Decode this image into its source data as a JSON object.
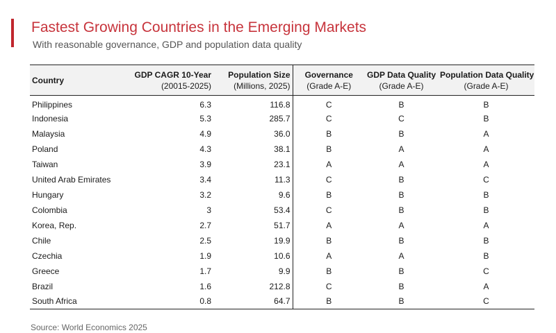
{
  "header": {
    "title": "Fastest Growing Countries in the Emerging Markets",
    "subtitle": "With reasonable governance, GDP and population data quality"
  },
  "colors": {
    "accent": "#c0262d",
    "title": "#c7343c",
    "header_bg": "#f2f2f2"
  },
  "chart_data": {
    "type": "table",
    "columns": [
      {
        "line1": "Country",
        "line2": ""
      },
      {
        "line1": "GDP CAGR 10-Year",
        "line2": "(20015-2025)"
      },
      {
        "line1": "Population Size",
        "line2": "(Millions, 2025)"
      },
      {
        "line1": "Governance",
        "line2": "(Grade A-E)"
      },
      {
        "line1": "GDP Data Quality",
        "line2": "(Grade A-E)"
      },
      {
        "line1": "Population Data Quality",
        "line2": "(Grade A-E)"
      }
    ],
    "rows": [
      {
        "country": "Philippines",
        "gdp_cagr": "6.3",
        "population": "116.8",
        "governance": "C",
        "gdp_quality": "B",
        "pop_quality": "B"
      },
      {
        "country": "Indonesia",
        "gdp_cagr": "5.3",
        "population": "285.7",
        "governance": "C",
        "gdp_quality": "C",
        "pop_quality": "B"
      },
      {
        "country": "Malaysia",
        "gdp_cagr": "4.9",
        "population": "36.0",
        "governance": "B",
        "gdp_quality": "B",
        "pop_quality": "A"
      },
      {
        "country": "Poland",
        "gdp_cagr": "4.3",
        "population": "38.1",
        "governance": "B",
        "gdp_quality": "A",
        "pop_quality": "A"
      },
      {
        "country": "Taiwan",
        "gdp_cagr": "3.9",
        "population": "23.1",
        "governance": "A",
        "gdp_quality": "A",
        "pop_quality": "A"
      },
      {
        "country": "United Arab Emirates",
        "gdp_cagr": "3.4",
        "population": "11.3",
        "governance": "C",
        "gdp_quality": "B",
        "pop_quality": "C"
      },
      {
        "country": "Hungary",
        "gdp_cagr": "3.2",
        "population": "9.6",
        "governance": "B",
        "gdp_quality": "B",
        "pop_quality": "B"
      },
      {
        "country": "Colombia",
        "gdp_cagr": "3",
        "population": "53.4",
        "governance": "C",
        "gdp_quality": "B",
        "pop_quality": "B"
      },
      {
        "country": "Korea, Rep.",
        "gdp_cagr": "2.7",
        "population": "51.7",
        "governance": "A",
        "gdp_quality": "A",
        "pop_quality": "A"
      },
      {
        "country": "Chile",
        "gdp_cagr": "2.5",
        "population": "19.9",
        "governance": "B",
        "gdp_quality": "B",
        "pop_quality": "B"
      },
      {
        "country": "Czechia",
        "gdp_cagr": "1.9",
        "population": "10.6",
        "governance": "A",
        "gdp_quality": "A",
        "pop_quality": "B"
      },
      {
        "country": "Greece",
        "gdp_cagr": "1.7",
        "population": "9.9",
        "governance": "B",
        "gdp_quality": "B",
        "pop_quality": "C"
      },
      {
        "country": "Brazil",
        "gdp_cagr": "1.6",
        "population": "212.8",
        "governance": "C",
        "gdp_quality": "B",
        "pop_quality": "A"
      },
      {
        "country": "South Africa",
        "gdp_cagr": "0.8",
        "population": "64.7",
        "governance": "B",
        "gdp_quality": "B",
        "pop_quality": "C"
      }
    ]
  },
  "footer": {
    "source": "Source: World Economics 2025"
  }
}
